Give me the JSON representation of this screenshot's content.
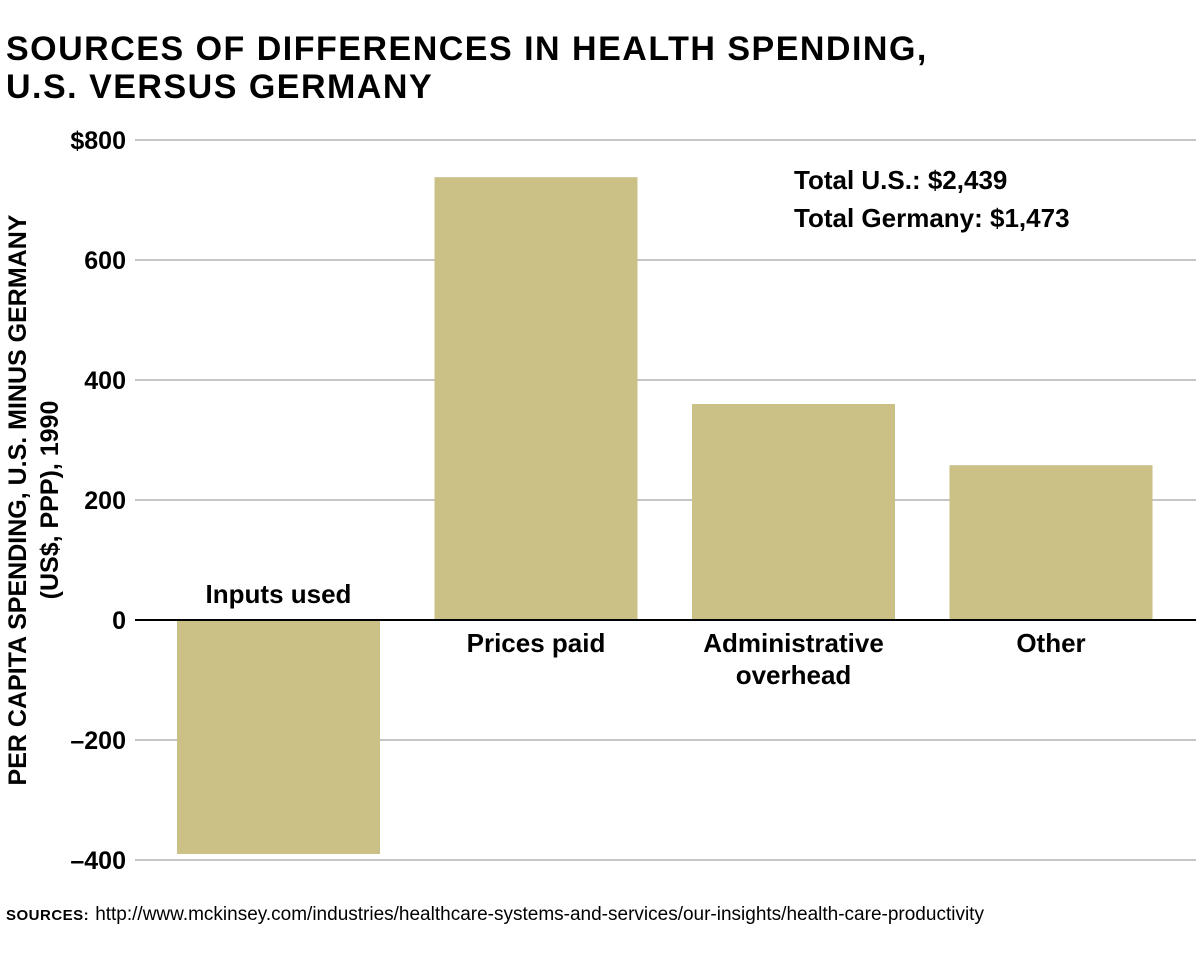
{
  "title_lines": [
    "SOURCES OF DIFFERENCES IN HEALTH SPENDING,",
    "U.S. VERSUS GERMANY"
  ],
  "colors": {
    "bar": "#cbc186",
    "grid": "#8c8c8c",
    "zero_line": "#000000",
    "text": "#000000"
  },
  "chart_data": {
    "type": "bar",
    "title": "SOURCES OF DIFFERENCES IN HEALTH SPENDING, U.S. VERSUS GERMANY",
    "categories": [
      "Inputs used",
      "Prices paid",
      "Administrative overhead",
      "Other"
    ],
    "category_label_lines": [
      [
        "Inputs used"
      ],
      [
        "Prices paid"
      ],
      [
        "Administrative",
        "overhead"
      ],
      [
        "Other"
      ]
    ],
    "values": [
      -390,
      738,
      360,
      258
    ],
    "ylabel_lines": [
      "PER CAPITA SPENDING, U.S. MINUS GERMANY",
      "(US$, PPP), 1990"
    ],
    "xlabel": "",
    "ylim": [
      -400,
      800
    ],
    "yticks": [
      800,
      600,
      400,
      200,
      0,
      -200,
      -400
    ],
    "ytick_labels": [
      "$800",
      "600",
      "400",
      "200",
      "0",
      "–200",
      "–400"
    ],
    "grid": true,
    "annotations": [
      "Total U.S.: $2,439",
      "Total Germany: $1,473"
    ],
    "annotation_placement": "top-right"
  },
  "footer": {
    "label": "SOURCES:",
    "text": "http://www.mckinsey.com/industries/healthcare-systems-and-services/our-insights/health-care-productivity"
  }
}
